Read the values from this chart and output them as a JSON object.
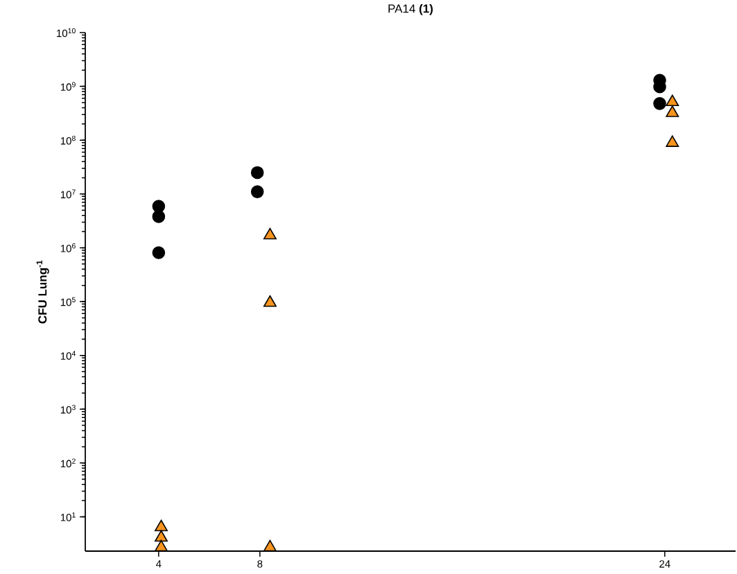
{
  "chart_data": {
    "type": "scatter",
    "title": "PA14 **(1)**",
    "ylabel": "CFU Lung$^{-1}$",
    "log": "y",
    "xlim": [
      1.1,
      26.8
    ],
    "ylim": [
      2.3,
      10000000000
    ],
    "xticks": [
      4,
      8,
      24
    ],
    "yticks": [
      {
        "value": 10,
        "label": "10$^{1}$"
      },
      {
        "value": 100,
        "label": "10$^{2}$"
      },
      {
        "value": 1000,
        "label": "10$^{3}$"
      },
      {
        "value": 10000,
        "label": "10$^{4}$"
      },
      {
        "value": 100000,
        "label": "10$^{5}$"
      },
      {
        "value": 1000000,
        "label": "10$^{6}$"
      },
      {
        "value": 10000000,
        "label": "10$^{7}$"
      },
      {
        "value": 100000000,
        "label": "10$^{8}$"
      },
      {
        "value": 1000000000,
        "label": "10$^{9}$"
      },
      {
        "value": 10000000000,
        "label": "10$^{10}$"
      }
    ],
    "grid": false,
    "series": [
      {
        "color": "#000000",
        "marker": "circle",
        "x": [
          4,
          4,
          4,
          7.9,
          7.9,
          23.8,
          23.8,
          23.8
        ],
        "values": [
          5900000,
          3800000,
          810000,
          25000000,
          11000000,
          1300000000,
          980000000,
          480000000
        ]
      },
      {
        "color": "#f7941d",
        "marker": "triangle",
        "x": [
          4.1,
          4.1,
          4.1,
          8.4,
          8.4,
          8.4,
          24.3,
          24.3,
          24.3
        ],
        "values": [
          6.4,
          4.1,
          2.7,
          1700000,
          95000,
          2.7,
          510000000,
          320000000,
          89000000
        ]
      }
    ]
  }
}
